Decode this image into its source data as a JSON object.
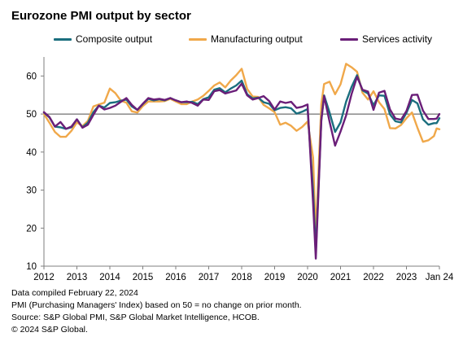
{
  "title": "Eurozone PMI output by sector",
  "notes": [
    "Data compiled February 22, 2024",
    "PMI (Purchasing Managers' Index) based on 50 = no change on prior month.",
    "Source: S&P Global PMI, S&P Global Market Intelligence, HCOB.",
    "© 2024 S&P Global."
  ],
  "chart_data": {
    "type": "line",
    "title": "Eurozone PMI output by sector",
    "xlabel": "",
    "ylabel": "",
    "xlim": [
      "2012-01",
      "2024-01"
    ],
    "ylim": [
      10,
      65
    ],
    "y_ticks": [
      10,
      20,
      30,
      40,
      50,
      60
    ],
    "x_tick_labels": [
      "2012",
      "2013",
      "2014",
      "2015",
      "2016",
      "2017",
      "2018",
      "2019",
      "2020",
      "2021",
      "2022",
      "2023",
      "Jan 24"
    ],
    "reference_line": 50,
    "grid": false,
    "legend": "top",
    "series": [
      {
        "name": "Composite output",
        "color": "#1a6e7e",
        "points": [
          [
            "2012-01",
            50.4
          ],
          [
            "2012-03",
            49.1
          ],
          [
            "2012-05",
            46.7
          ],
          [
            "2012-07",
            46.5
          ],
          [
            "2012-09",
            46.1
          ],
          [
            "2012-11",
            46.5
          ],
          [
            "2013-01",
            48.6
          ],
          [
            "2013-03",
            46.5
          ],
          [
            "2013-05",
            47.7
          ],
          [
            "2013-07",
            50.5
          ],
          [
            "2013-09",
            52.2
          ],
          [
            "2013-11",
            51.7
          ],
          [
            "2014-01",
            52.9
          ],
          [
            "2014-03",
            53.1
          ],
          [
            "2014-05",
            53.5
          ],
          [
            "2014-07",
            53.8
          ],
          [
            "2014-09",
            52.0
          ],
          [
            "2014-11",
            51.1
          ],
          [
            "2015-01",
            52.6
          ],
          [
            "2015-03",
            54.0
          ],
          [
            "2015-05",
            53.6
          ],
          [
            "2015-07",
            53.9
          ],
          [
            "2015-09",
            53.6
          ],
          [
            "2015-11",
            54.2
          ],
          [
            "2016-01",
            53.6
          ],
          [
            "2016-03",
            53.1
          ],
          [
            "2016-05",
            53.1
          ],
          [
            "2016-07",
            53.2
          ],
          [
            "2016-09",
            52.6
          ],
          [
            "2016-11",
            53.9
          ],
          [
            "2017-01",
            54.4
          ],
          [
            "2017-03",
            56.4
          ],
          [
            "2017-05",
            56.8
          ],
          [
            "2017-07",
            55.7
          ],
          [
            "2017-09",
            56.7
          ],
          [
            "2017-11",
            57.5
          ],
          [
            "2018-01",
            58.8
          ],
          [
            "2018-03",
            55.2
          ],
          [
            "2018-05",
            54.1
          ],
          [
            "2018-07",
            54.3
          ],
          [
            "2018-09",
            53.1
          ],
          [
            "2018-11",
            52.7
          ],
          [
            "2019-01",
            51.0
          ],
          [
            "2019-03",
            51.6
          ],
          [
            "2019-05",
            51.8
          ],
          [
            "2019-07",
            51.5
          ],
          [
            "2019-09",
            50.1
          ],
          [
            "2019-11",
            50.6
          ],
          [
            "2020-01",
            51.3
          ],
          [
            "2020-03",
            29.7
          ],
          [
            "2020-04",
            13.6
          ],
          [
            "2020-06",
            48.5
          ],
          [
            "2020-07",
            54.9
          ],
          [
            "2020-09",
            50.4
          ],
          [
            "2020-11",
            45.3
          ],
          [
            "2021-01",
            47.8
          ],
          [
            "2021-03",
            53.2
          ],
          [
            "2021-05",
            57.1
          ],
          [
            "2021-07",
            60.2
          ],
          [
            "2021-09",
            56.2
          ],
          [
            "2021-11",
            55.4
          ],
          [
            "2022-01",
            52.3
          ],
          [
            "2022-03",
            54.9
          ],
          [
            "2022-05",
            54.8
          ],
          [
            "2022-07",
            49.9
          ],
          [
            "2022-09",
            48.1
          ],
          [
            "2022-11",
            47.8
          ],
          [
            "2023-01",
            50.3
          ],
          [
            "2023-03",
            53.7
          ],
          [
            "2023-05",
            52.8
          ],
          [
            "2023-07",
            48.6
          ],
          [
            "2023-09",
            47.2
          ],
          [
            "2023-11",
            47.6
          ],
          [
            "2023-12",
            47.6
          ],
          [
            "2024-01",
            48.9
          ]
        ]
      },
      {
        "name": "Manufacturing output",
        "color": "#f0a84a",
        "points": [
          [
            "2012-01",
            50.0
          ],
          [
            "2012-03",
            47.7
          ],
          [
            "2012-05",
            45.3
          ],
          [
            "2012-07",
            44.0
          ],
          [
            "2012-09",
            44.0
          ],
          [
            "2012-11",
            45.6
          ],
          [
            "2013-01",
            47.8
          ],
          [
            "2013-03",
            46.8
          ],
          [
            "2013-05",
            48.2
          ],
          [
            "2013-07",
            52.0
          ],
          [
            "2013-09",
            52.5
          ],
          [
            "2013-11",
            53.0
          ],
          [
            "2014-01",
            56.7
          ],
          [
            "2014-03",
            55.5
          ],
          [
            "2014-05",
            53.5
          ],
          [
            "2014-07",
            53.0
          ],
          [
            "2014-09",
            50.7
          ],
          [
            "2014-11",
            50.4
          ],
          [
            "2015-01",
            52.1
          ],
          [
            "2015-03",
            53.3
          ],
          [
            "2015-05",
            53.3
          ],
          [
            "2015-07",
            53.3
          ],
          [
            "2015-09",
            53.4
          ],
          [
            "2015-11",
            54.0
          ],
          [
            "2016-01",
            53.3
          ],
          [
            "2016-03",
            52.6
          ],
          [
            "2016-05",
            52.6
          ],
          [
            "2016-07",
            53.3
          ],
          [
            "2016-09",
            53.8
          ],
          [
            "2016-11",
            54.8
          ],
          [
            "2017-01",
            56.1
          ],
          [
            "2017-03",
            57.5
          ],
          [
            "2017-05",
            58.3
          ],
          [
            "2017-07",
            57.0
          ],
          [
            "2017-09",
            58.8
          ],
          [
            "2017-11",
            60.2
          ],
          [
            "2018-01",
            61.9
          ],
          [
            "2018-03",
            56.6
          ],
          [
            "2018-05",
            54.6
          ],
          [
            "2018-07",
            54.5
          ],
          [
            "2018-09",
            52.4
          ],
          [
            "2018-11",
            51.5
          ],
          [
            "2019-01",
            50.5
          ],
          [
            "2019-03",
            47.2
          ],
          [
            "2019-05",
            47.7
          ],
          [
            "2019-07",
            46.9
          ],
          [
            "2019-09",
            45.6
          ],
          [
            "2019-11",
            46.6
          ],
          [
            "2020-01",
            48.0
          ],
          [
            "2020-03",
            38.5
          ],
          [
            "2020-04",
            18.1
          ],
          [
            "2020-06",
            52.6
          ],
          [
            "2020-07",
            57.9
          ],
          [
            "2020-09",
            58.5
          ],
          [
            "2020-11",
            55.2
          ],
          [
            "2021-01",
            57.8
          ],
          [
            "2021-03",
            63.2
          ],
          [
            "2021-05",
            62.3
          ],
          [
            "2021-07",
            61.1
          ],
          [
            "2021-09",
            55.6
          ],
          [
            "2021-11",
            53.8
          ],
          [
            "2022-01",
            56.0
          ],
          [
            "2022-03",
            53.1
          ],
          [
            "2022-05",
            51.3
          ],
          [
            "2022-07",
            46.3
          ],
          [
            "2022-09",
            46.2
          ],
          [
            "2022-11",
            47.1
          ],
          [
            "2023-01",
            48.9
          ],
          [
            "2023-03",
            50.4
          ],
          [
            "2023-05",
            46.4
          ],
          [
            "2023-07",
            42.7
          ],
          [
            "2023-09",
            43.1
          ],
          [
            "2023-11",
            44.2
          ],
          [
            "2023-12",
            46.2
          ],
          [
            "2024-01",
            46.0
          ]
        ]
      },
      {
        "name": "Services activity",
        "color": "#6a1e78",
        "points": [
          [
            "2012-01",
            50.5
          ],
          [
            "2012-03",
            49.2
          ],
          [
            "2012-05",
            46.7
          ],
          [
            "2012-07",
            47.9
          ],
          [
            "2012-09",
            46.1
          ],
          [
            "2012-11",
            46.7
          ],
          [
            "2013-01",
            48.6
          ],
          [
            "2013-03",
            46.4
          ],
          [
            "2013-05",
            47.2
          ],
          [
            "2013-07",
            49.8
          ],
          [
            "2013-09",
            52.2
          ],
          [
            "2013-11",
            51.2
          ],
          [
            "2014-01",
            51.6
          ],
          [
            "2014-03",
            52.2
          ],
          [
            "2014-05",
            53.2
          ],
          [
            "2014-07",
            54.2
          ],
          [
            "2014-09",
            52.4
          ],
          [
            "2014-11",
            51.1
          ],
          [
            "2015-01",
            52.7
          ],
          [
            "2015-03",
            54.2
          ],
          [
            "2015-05",
            53.8
          ],
          [
            "2015-07",
            54.0
          ],
          [
            "2015-09",
            53.7
          ],
          [
            "2015-11",
            54.2
          ],
          [
            "2016-01",
            53.6
          ],
          [
            "2016-03",
            53.1
          ],
          [
            "2016-05",
            53.3
          ],
          [
            "2016-07",
            52.9
          ],
          [
            "2016-09",
            52.2
          ],
          [
            "2016-11",
            53.8
          ],
          [
            "2017-01",
            53.7
          ],
          [
            "2017-03",
            56.0
          ],
          [
            "2017-05",
            56.3
          ],
          [
            "2017-07",
            55.4
          ],
          [
            "2017-09",
            55.8
          ],
          [
            "2017-11",
            56.2
          ],
          [
            "2018-01",
            58.0
          ],
          [
            "2018-03",
            54.9
          ],
          [
            "2018-05",
            53.8
          ],
          [
            "2018-07",
            54.2
          ],
          [
            "2018-09",
            54.7
          ],
          [
            "2018-11",
            53.4
          ],
          [
            "2019-01",
            51.2
          ],
          [
            "2019-03",
            53.3
          ],
          [
            "2019-05",
            52.9
          ],
          [
            "2019-07",
            53.2
          ],
          [
            "2019-09",
            51.6
          ],
          [
            "2019-11",
            51.9
          ],
          [
            "2020-01",
            52.5
          ],
          [
            "2020-03",
            26.4
          ],
          [
            "2020-04",
            12.0
          ],
          [
            "2020-06",
            48.3
          ],
          [
            "2020-07",
            54.7
          ],
          [
            "2020-09",
            48.0
          ],
          [
            "2020-11",
            41.7
          ],
          [
            "2021-01",
            45.4
          ],
          [
            "2021-03",
            49.6
          ],
          [
            "2021-05",
            55.2
          ],
          [
            "2021-07",
            59.8
          ],
          [
            "2021-09",
            56.4
          ],
          [
            "2021-11",
            55.9
          ],
          [
            "2022-01",
            51.1
          ],
          [
            "2022-03",
            55.6
          ],
          [
            "2022-05",
            56.1
          ],
          [
            "2022-07",
            51.2
          ],
          [
            "2022-09",
            48.8
          ],
          [
            "2022-11",
            48.5
          ],
          [
            "2023-01",
            50.8
          ],
          [
            "2023-03",
            55.0
          ],
          [
            "2023-05",
            55.1
          ],
          [
            "2023-07",
            50.9
          ],
          [
            "2023-09",
            48.7
          ],
          [
            "2023-11",
            48.7
          ],
          [
            "2023-12",
            48.8
          ],
          [
            "2024-01",
            50.0
          ]
        ]
      }
    ]
  }
}
